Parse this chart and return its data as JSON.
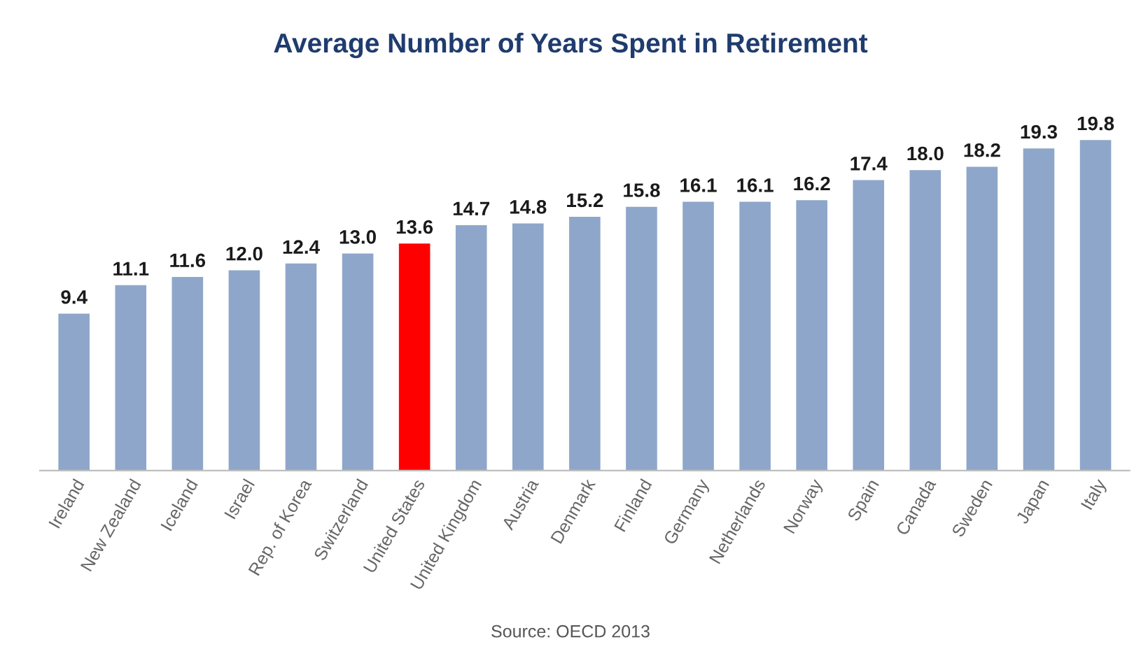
{
  "chart_data": {
    "type": "bar",
    "title": "Average Number of Years Spent in Retirement",
    "categories": [
      "Ireland",
      "New Zealand",
      "Iceland",
      "Israel",
      "Rep. of Korea",
      "Switzerland",
      "United States",
      "United Kingdom",
      "Austria",
      "Denmark",
      "Finland",
      "Germany",
      "Netherlands",
      "Norway",
      "Spain",
      "Canada",
      "Sweden",
      "Japan",
      "Italy"
    ],
    "values": [
      9.4,
      11.1,
      11.6,
      12.0,
      12.4,
      13.0,
      13.6,
      14.7,
      14.8,
      15.2,
      15.8,
      16.1,
      16.1,
      16.2,
      17.4,
      18.0,
      18.2,
      19.3,
      19.8
    ],
    "value_labels": [
      "9.4",
      "11.1",
      "11.6",
      "12.0",
      "12.4",
      "13.0",
      "13.6",
      "14.7",
      "14.8",
      "15.2",
      "15.8",
      "16.1",
      "16.1",
      "16.2",
      "17.4",
      "18.0",
      "18.2",
      "19.3",
      "19.8"
    ],
    "colors": [
      "#8ea6c9",
      "#8ea6c9",
      "#8ea6c9",
      "#8ea6c9",
      "#8ea6c9",
      "#8ea6c9",
      "#ff0000",
      "#8ea6c9",
      "#8ea6c9",
      "#8ea6c9",
      "#8ea6c9",
      "#8ea6c9",
      "#8ea6c9",
      "#8ea6c9",
      "#8ea6c9",
      "#8ea6c9",
      "#8ea6c9",
      "#8ea6c9",
      "#8ea6c9"
    ],
    "annotations": [
      "Source: OECD 2013"
    ],
    "tick_labels": "x",
    "grid": false,
    "legend": false
  }
}
